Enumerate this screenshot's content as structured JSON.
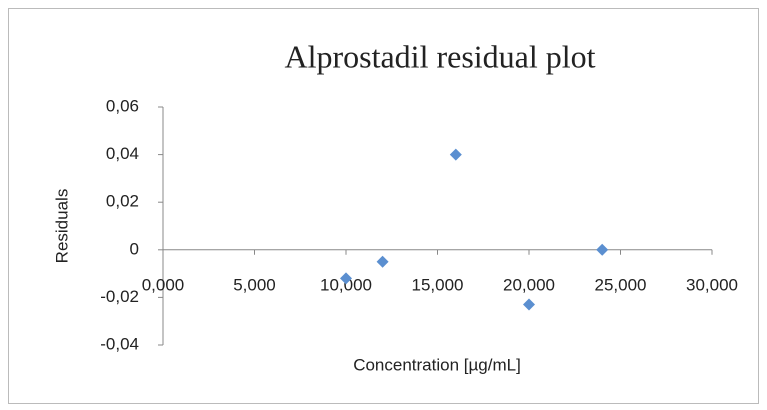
{
  "chart_data": {
    "type": "scatter",
    "title": "Alprostadil residual plot",
    "x_label": "Concentration [µg/mL]",
    "y_label": "Residuals",
    "series": [
      {
        "color": "#5b8fd0",
        "x": [
          10,
          12,
          16,
          20,
          24
        ],
        "values": [
          -0.012,
          -0.005,
          0.04,
          -0.023,
          0.0
        ]
      }
    ],
    "xlim": [
      0,
      30
    ],
    "xticks": [
      {
        "value": 0,
        "label": "0,000"
      },
      {
        "value": 5,
        "label": "5,000"
      },
      {
        "value": 10,
        "label": "10,000"
      },
      {
        "value": 15,
        "label": "15,000"
      },
      {
        "value": 20,
        "label": "20,000"
      },
      {
        "value": 25,
        "label": "25,000"
      },
      {
        "value": 30,
        "label": "30,000"
      }
    ],
    "ylim": [
      -0.04,
      0.06
    ],
    "yticks": [
      {
        "value": -0.04,
        "label": "-0,04"
      },
      {
        "value": -0.02,
        "label": "-0,02"
      },
      0,
      {
        "value": 0.02,
        "label": "0,02"
      },
      {
        "value": 0.04,
        "label": "0,04"
      },
      {
        "value": 0.06,
        "label": "0,06"
      }
    ],
    "grid": false,
    "legend": false
  }
}
